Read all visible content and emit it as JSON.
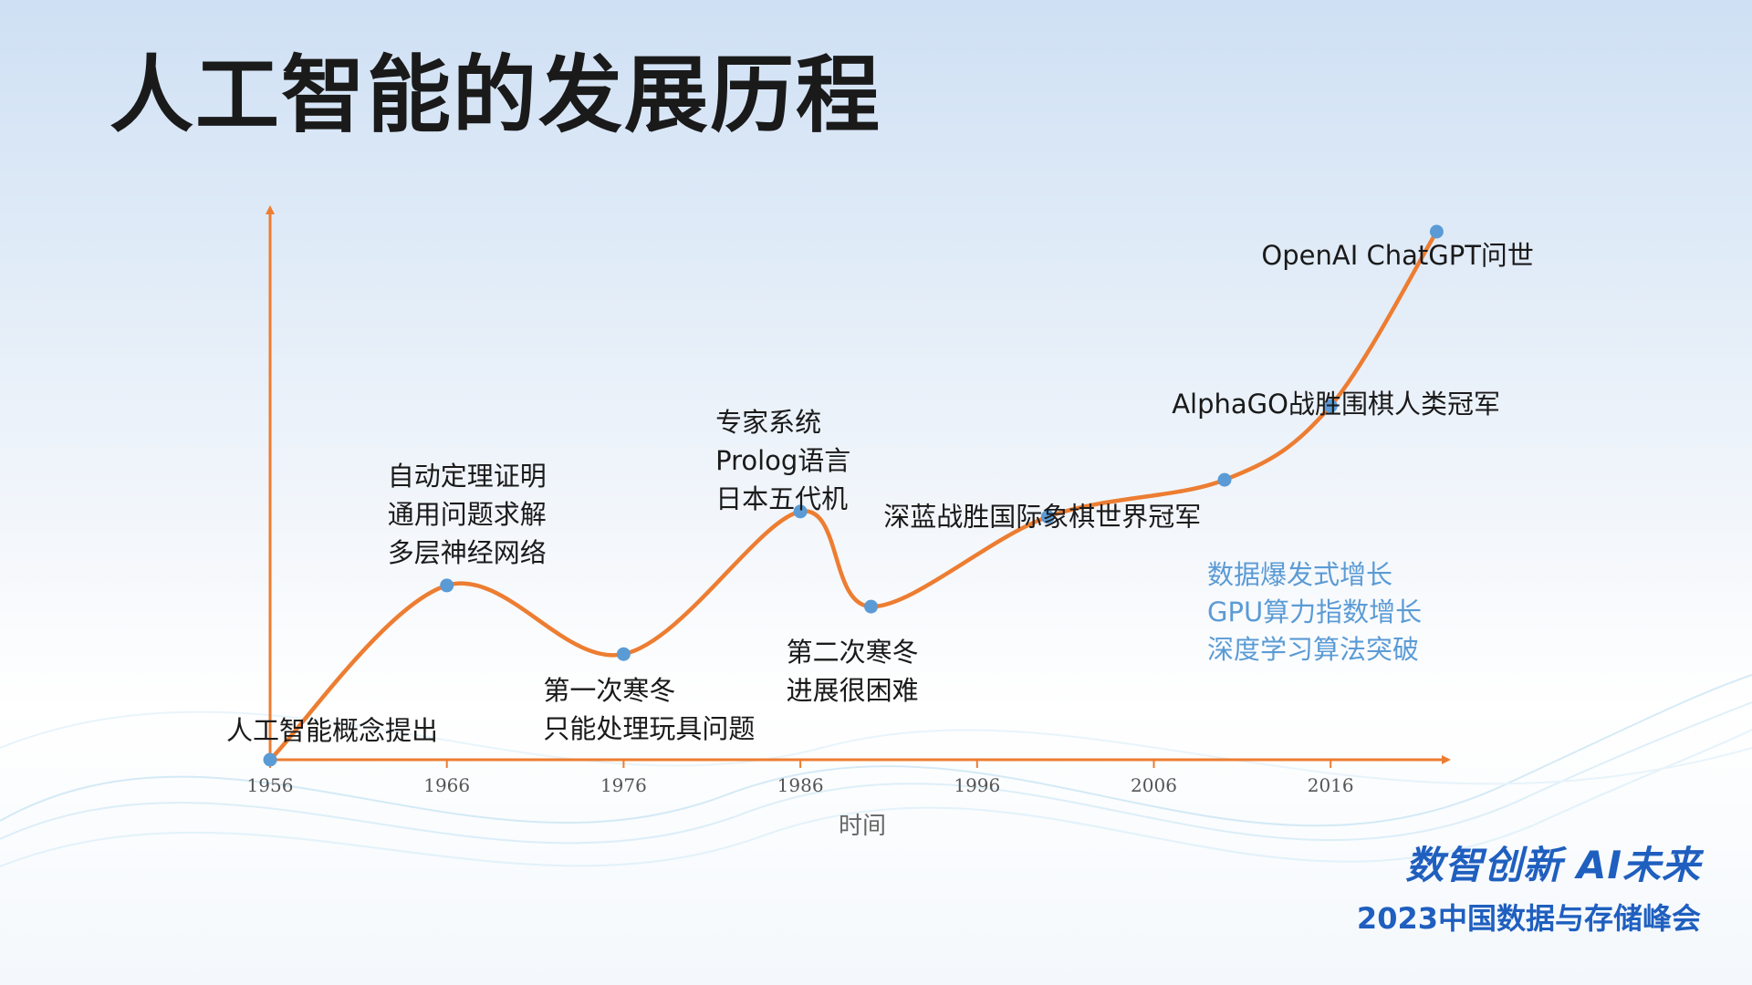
{
  "page": {
    "title": "人工智能的发展历程"
  },
  "chart_data": {
    "type": "line",
    "title": "",
    "xlabel": "时间",
    "ylabel": "",
    "x_ticks": [
      "1956",
      "1966",
      "1976",
      "1986",
      "1996",
      "2006",
      "2016"
    ],
    "xlim": [
      1956,
      2022
    ],
    "ylim": [
      0,
      100
    ],
    "grid": false,
    "colors": {
      "line": "#ED7D31",
      "axis": "#ED7D31",
      "marker": "#5B9BD5",
      "highlight": "#5B9BD5"
    },
    "points": [
      {
        "x": 1956,
        "y": 0
      },
      {
        "x": 1966,
        "y": 33
      },
      {
        "x": 1976,
        "y": 20
      },
      {
        "x": 1986,
        "y": 47
      },
      {
        "x": 1990,
        "y": 29
      },
      {
        "x": 2000,
        "y": 46
      },
      {
        "x": 2010,
        "y": 53
      },
      {
        "x": 2016,
        "y": 67
      },
      {
        "x": 2022,
        "y": 100
      }
    ],
    "annotations": [
      {
        "lines": [
          "人工智能概念提出"
        ],
        "x": 1956,
        "y": 0,
        "anchor": "above-right"
      },
      {
        "lines": [
          "自动定理证明",
          "通用问题求解",
          "多层神经网络"
        ],
        "x": 1966,
        "y": 33,
        "anchor": "above"
      },
      {
        "lines": [
          "第一次寒冬",
          "只能处理玩具问题"
        ],
        "x": 1976,
        "y": 20,
        "anchor": "below"
      },
      {
        "lines": [
          "专家系统",
          "Prolog语言",
          "日本五代机"
        ],
        "x": 1986,
        "y": 47,
        "anchor": "above"
      },
      {
        "lines": [
          "第二次寒冬",
          "进展很困难"
        ],
        "x": 1990,
        "y": 29,
        "anchor": "below"
      },
      {
        "lines": [
          "深蓝战胜国际象棋世界冠军"
        ],
        "x": 2000,
        "y": 46,
        "anchor": "below"
      },
      {
        "lines": [
          "AlphaGO战胜围棋人类冠军"
        ],
        "x": 2016,
        "y": 67,
        "anchor": "center"
      },
      {
        "lines": [
          "OpenAI ChatGPT问世"
        ],
        "x": 2022,
        "y": 100,
        "anchor": "below-left"
      }
    ],
    "highlight_note": [
      "数据爆发式增长",
      "GPU算力指数增长",
      "深度学习算法突破"
    ]
  },
  "branding": {
    "slogan": "数智创新 AI未来",
    "event": "2023中国数据与存储峰会"
  }
}
